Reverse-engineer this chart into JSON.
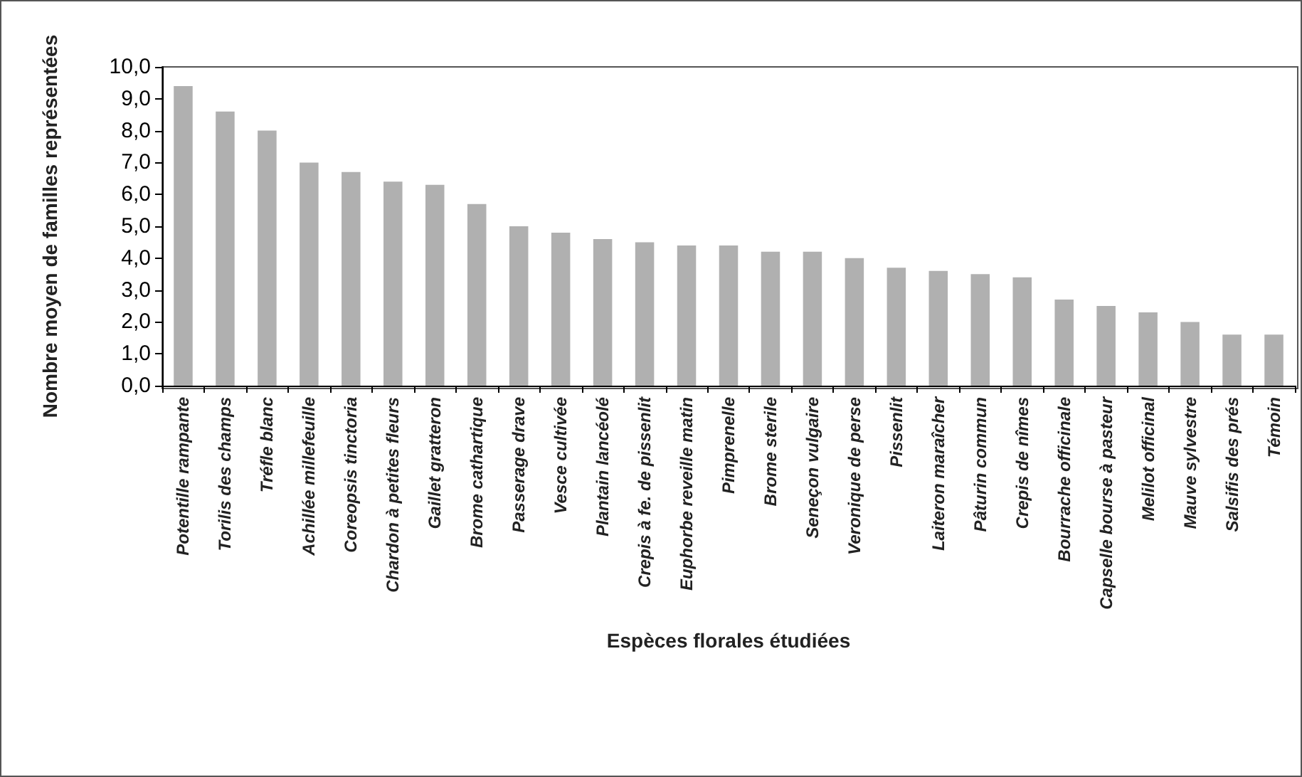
{
  "chart_data": {
    "type": "bar",
    "xlabel": "Espèces florales étudiées",
    "ylabel": "Nombre moyen de familles représentées",
    "categories": [
      "Potentille rampante",
      "Torilis des champs",
      "Tréfle blanc",
      "Achillée millefeuille",
      "Coreopsis tinctoria",
      "Chardon à petites fleurs",
      "Gaillet gratteron",
      "Brome cathartique",
      "Passerage drave",
      "Vesce cultivée",
      "Plantain lancéolé",
      "Crepis à fe. de pissenlit",
      "Euphorbe reveille matin",
      "Pimprenelle",
      "Brome sterile",
      "Seneçon vulgaire",
      "Veronique de perse",
      "Pissenlit",
      "Laiteron maraîcher",
      "Pâturin commun",
      "Crepis de nîmes",
      "Bourrache officinale",
      "Capselle bourse à pasteur",
      "Melilot officinal",
      "Mauve sylvestre",
      "Salsifis des prés",
      "Témoin"
    ],
    "values": [
      9.4,
      8.6,
      8.0,
      7.0,
      6.7,
      6.4,
      6.3,
      5.7,
      5.0,
      4.8,
      4.6,
      4.5,
      4.4,
      4.4,
      4.2,
      4.2,
      4.0,
      3.7,
      3.6,
      3.5,
      3.4,
      2.7,
      2.5,
      2.3,
      2.0,
      1.6,
      1.6
    ],
    "color": "#b0b0b0",
    "ylim": [
      0,
      10
    ],
    "yticks": [
      {
        "value": 0,
        "label": "0,0"
      },
      {
        "value": 1,
        "label": "1,0"
      },
      {
        "value": 2,
        "label": "2,0"
      },
      {
        "value": 3,
        "label": "3,0"
      },
      {
        "value": 4,
        "label": "4,0"
      },
      {
        "value": 5,
        "label": "5,0"
      },
      {
        "value": 6,
        "label": "6,0"
      },
      {
        "value": 7,
        "label": "7,0"
      },
      {
        "value": 8,
        "label": "8,0"
      },
      {
        "value": 9,
        "label": "9,0"
      },
      {
        "value": 10,
        "label": "10,0"
      }
    ],
    "grid": false
  }
}
